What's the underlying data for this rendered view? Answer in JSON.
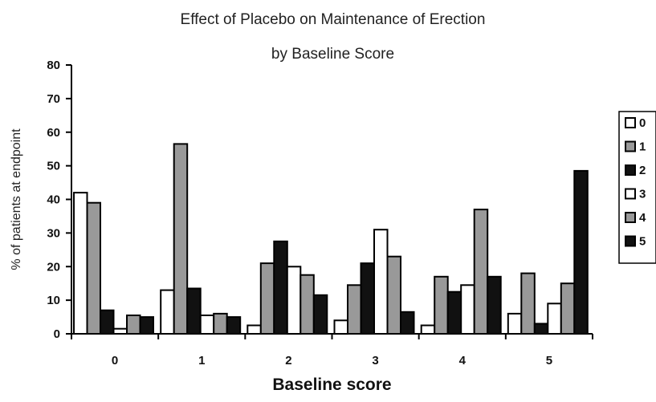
{
  "chart_data": {
    "type": "bar",
    "title": "Effect of Placebo on Maintenance of Erection",
    "subtitle": "by Baseline Score",
    "xlabel": "Baseline score",
    "ylabel": "% of patients at endpoint",
    "ylim": [
      0,
      80
    ],
    "yticks": [
      "0",
      "10",
      "20",
      "30",
      "40",
      "50",
      "60",
      "70",
      "80"
    ],
    "categories": [
      "0",
      "1",
      "2",
      "3",
      "4",
      "5"
    ],
    "legend_position": "right",
    "grid": false,
    "series": [
      {
        "name": "0",
        "color": "#ffffff",
        "values": [
          42,
          13,
          2.5,
          4,
          2.5,
          6
        ]
      },
      {
        "name": "1",
        "color": "#999999",
        "values": [
          39,
          56.5,
          21,
          14.5,
          17,
          18
        ]
      },
      {
        "name": "2",
        "color": "#111111",
        "values": [
          7,
          13.5,
          27.5,
          21,
          12.5,
          3
        ]
      },
      {
        "name": "3",
        "color": "#ffffff",
        "values": [
          1.5,
          5.5,
          20,
          31,
          14.5,
          9
        ]
      },
      {
        "name": "4",
        "color": "#999999",
        "values": [
          5.5,
          6,
          17.5,
          23,
          37,
          15
        ]
      },
      {
        "name": "5",
        "color": "#111111",
        "values": [
          5,
          5,
          11.5,
          6.5,
          17,
          48.5
        ]
      }
    ]
  }
}
